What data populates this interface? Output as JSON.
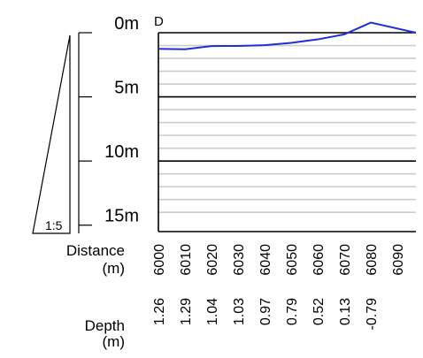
{
  "chart_data": {
    "type": "line",
    "title": "",
    "point_label": "D",
    "scale_label": "1:5",
    "y_axis": {
      "unit": "m",
      "ticks": [
        "0m",
        "5m",
        "10m",
        "15m"
      ],
      "tick_values": [
        0,
        5,
        10,
        15
      ],
      "range": [
        0,
        15.5
      ],
      "inverted": true
    },
    "x_axis": {
      "range": [
        6000,
        6097
      ],
      "distance_title": "Distance",
      "distance_unit": "(m)",
      "depth_title": "Depth",
      "depth_unit": "(m)"
    },
    "distance_labels": [
      "6000",
      "6010",
      "6020",
      "6030",
      "6040",
      "6050",
      "6060",
      "6070",
      "6080",
      "6090"
    ],
    "distance_values": [
      6000,
      6010,
      6020,
      6030,
      6040,
      6050,
      6060,
      6070,
      6080,
      6090
    ],
    "depth_labels": [
      "1.26",
      "1.29",
      "1.04",
      "1.03",
      "0.97",
      "0.79",
      "0.52",
      "0.13",
      "-0.79",
      ""
    ],
    "profile": {
      "x": [
        6000,
        6010,
        6020,
        6030,
        6040,
        6050,
        6060,
        6070,
        6080,
        6097
      ],
      "y": [
        1.26,
        1.29,
        1.04,
        1.03,
        0.97,
        0.79,
        0.52,
        0.13,
        -0.79,
        0.0
      ],
      "color": "#1f2fd6"
    },
    "grid": true,
    "grid_color": "#cccccc"
  }
}
